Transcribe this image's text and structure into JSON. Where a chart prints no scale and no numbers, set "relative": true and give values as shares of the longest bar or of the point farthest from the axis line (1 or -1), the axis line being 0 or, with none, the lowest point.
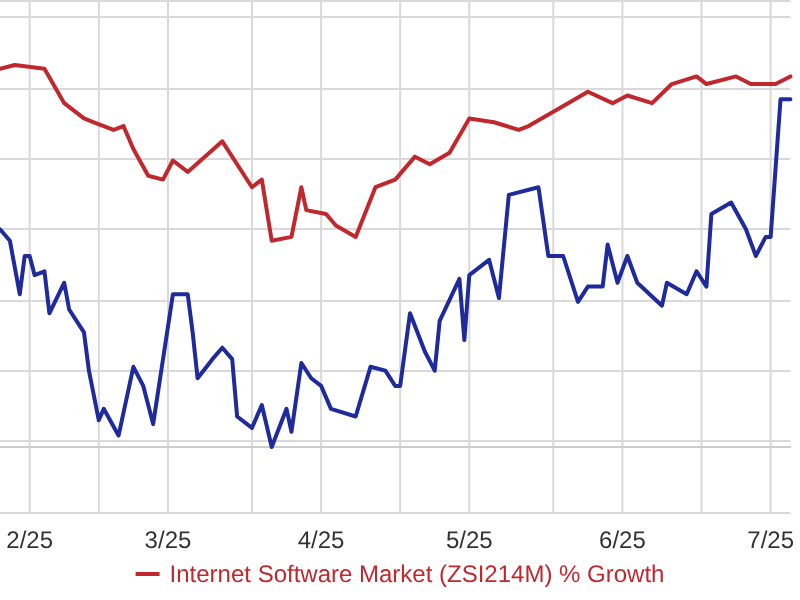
{
  "chart_data": {
    "type": "line",
    "relative": true,
    "legend": "bottom",
    "grid": true,
    "marker": "none",
    "line_style": "solid",
    "xlim": [
      "2025-02-09",
      "2025-07-19"
    ],
    "xticks": [
      {
        "value": "2025-02-15",
        "label": "2/25"
      },
      {
        "value": "2025-03-01",
        "label": null
      },
      {
        "value": "2025-03-15",
        "label": "3/25"
      },
      {
        "value": "2025-04-01",
        "label": null
      },
      {
        "value": "2025-04-15",
        "label": "4/25"
      },
      {
        "value": "2025-05-01",
        "label": null
      },
      {
        "value": "2025-05-15",
        "label": "5/25"
      },
      {
        "value": "2025-06-01",
        "label": null
      },
      {
        "value": "2025-06-15",
        "label": "6/25"
      },
      {
        "value": "2025-07-01",
        "label": null
      },
      {
        "value": "2025-07-15",
        "label": "7/25"
      }
    ],
    "series": [
      {
        "color": "#1f2a9c",
        "x": [
          "2025-02-09",
          "2025-02-11",
          "2025-02-13",
          "2025-02-14",
          "2025-02-15",
          "2025-02-16",
          "2025-02-18",
          "2025-02-19",
          "2025-02-22",
          "2025-02-23",
          "2025-02-26",
          "2025-02-27",
          "2025-03-01",
          "2025-03-02",
          "2025-03-05",
          "2025-03-08",
          "2025-03-10",
          "2025-03-12",
          "2025-03-16",
          "2025-03-19",
          "2025-03-20",
          "2025-03-21",
          "2025-03-24",
          "2025-03-26",
          "2025-03-28",
          "2025-03-29",
          "2025-04-01",
          "2025-04-03",
          "2025-04-05",
          "2025-04-08",
          "2025-04-09",
          "2025-04-11",
          "2025-04-13",
          "2025-04-15",
          "2025-04-17",
          "2025-04-22",
          "2025-04-25",
          "2025-04-28",
          "2025-04-30",
          "2025-05-01",
          "2025-05-03",
          "2025-05-06",
          "2025-05-08",
          "2025-05-09",
          "2025-05-13",
          "2025-05-14",
          "2025-05-15",
          "2025-05-19",
          "2025-05-21",
          "2025-05-23",
          "2025-05-29",
          "2025-05-31",
          "2025-06-03",
          "2025-06-06",
          "2025-06-08",
          "2025-06-11",
          "2025-06-12",
          "2025-06-14",
          "2025-06-16",
          "2025-06-18",
          "2025-06-23",
          "2025-06-24",
          "2025-06-28",
          "2025-06-30",
          "2025-07-02",
          "2025-07-03",
          "2025-07-07",
          "2025-07-10",
          "2025-07-12",
          "2025-07-14",
          "2025-07-15",
          "2025-07-17",
          "2025-07-19"
        ],
        "values": [
          0.57,
          0.54,
          0.4,
          0.5,
          0.5,
          0.45,
          0.46,
          0.35,
          0.43,
          0.36,
          0.3,
          0.2,
          0.07,
          0.1,
          0.03,
          0.21,
          0.16,
          0.06,
          0.4,
          0.4,
          0.3,
          0.18,
          0.23,
          0.26,
          0.23,
          0.08,
          0.05,
          0.11,
          0,
          0.1,
          0.04,
          0.22,
          0.18,
          0.16,
          0.1,
          0.08,
          0.21,
          0.2,
          0.16,
          0.16,
          0.35,
          0.25,
          0.2,
          0.33,
          0.44,
          0.28,
          0.45,
          0.49,
          0.39,
          0.66,
          0.68,
          0.5,
          0.5,
          0.38,
          0.42,
          0.42,
          0.53,
          0.43,
          0.5,
          0.43,
          0.37,
          0.43,
          0.4,
          0.46,
          0.42,
          0.61,
          0.64,
          0.57,
          0.5,
          0.55,
          0.55,
          0.91,
          0.91
        ]
      },
      {
        "name": "Internet Software Market (ZSI214M) % Growth",
        "color": "#c0282d",
        "x": [
          "2025-02-09",
          "2025-02-12",
          "2025-02-18",
          "2025-02-22",
          "2025-02-26",
          "2025-02-28",
          "2025-03-04",
          "2025-03-06",
          "2025-03-08",
          "2025-03-11",
          "2025-03-14",
          "2025-03-16",
          "2025-03-19",
          "2025-03-26",
          "2025-04-01",
          "2025-04-03",
          "2025-04-05",
          "2025-04-09",
          "2025-04-11",
          "2025-04-12",
          "2025-04-16",
          "2025-04-18",
          "2025-04-22",
          "2025-04-26",
          "2025-04-30",
          "2025-05-04",
          "2025-05-07",
          "2025-05-11",
          "2025-05-15",
          "2025-05-20",
          "2025-05-25",
          "2025-05-27",
          "2025-06-04",
          "2025-06-08",
          "2025-06-13",
          "2025-06-16",
          "2025-06-21",
          "2025-06-25",
          "2025-06-30",
          "2025-07-02",
          "2025-07-08",
          "2025-07-11",
          "2025-07-16",
          "2025-07-19"
        ],
        "values": [
          0.99,
          1,
          0.99,
          0.9,
          0.86,
          0.85,
          0.83,
          0.84,
          0.78,
          0.71,
          0.7,
          0.75,
          0.72,
          0.8,
          0.68,
          0.7,
          0.54,
          0.55,
          0.68,
          0.62,
          0.61,
          0.58,
          0.55,
          0.68,
          0.7,
          0.76,
          0.74,
          0.77,
          0.86,
          0.85,
          0.83,
          0.84,
          0.9,
          0.93,
          0.9,
          0.92,
          0.9,
          0.95,
          0.97,
          0.95,
          0.97,
          0.95,
          0.95,
          0.97
        ]
      }
    ]
  }
}
